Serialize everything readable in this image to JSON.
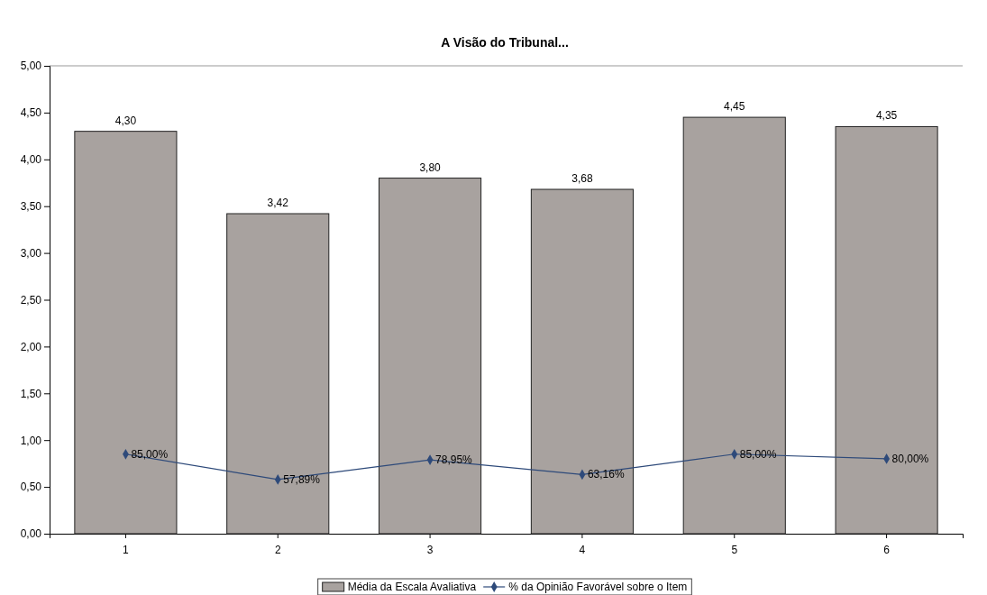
{
  "chart_data": {
    "type": "bar",
    "title": "A Visão do Tribunal...",
    "categories": [
      "1",
      "2",
      "3",
      "4",
      "5",
      "6"
    ],
    "series": [
      {
        "name": "Média da Escala Avaliativa",
        "color": "#a8a29f",
        "values": [
          4.3,
          3.42,
          3.8,
          3.68,
          4.45,
          4.35
        ],
        "value_labels": [
          "4,30",
          "3,42",
          "3,80",
          "3,68",
          "4,45",
          "4,35"
        ]
      },
      {
        "name": "% da Opinião Favorável sobre o Item",
        "type": "line",
        "color": "#2e4a7a",
        "marker": "diamond",
        "values": [
          0.85,
          0.5789,
          0.7895,
          0.6316,
          0.85,
          0.8
        ],
        "value_labels": [
          "85,00%",
          "57,89%",
          "78,95%",
          "63,16%",
          "85,00%",
          "80,00%"
        ]
      }
    ],
    "ylim": [
      0,
      5
    ],
    "yticks": [
      {
        "value": 0,
        "label": "0,00"
      },
      {
        "value": 0.5,
        "label": "0,50"
      },
      {
        "value": 1,
        "label": "1,00"
      },
      {
        "value": 1.5,
        "label": "1,50"
      },
      {
        "value": 2,
        "label": "2,00"
      },
      {
        "value": 2.5,
        "label": "2,50"
      },
      {
        "value": 3,
        "label": "3,00"
      },
      {
        "value": 3.5,
        "label": "3,50"
      },
      {
        "value": 4,
        "label": "4,00"
      },
      {
        "value": 4.5,
        "label": "4,50"
      },
      {
        "value": 5,
        "label": "5,00"
      }
    ],
    "legend": "bottom"
  }
}
